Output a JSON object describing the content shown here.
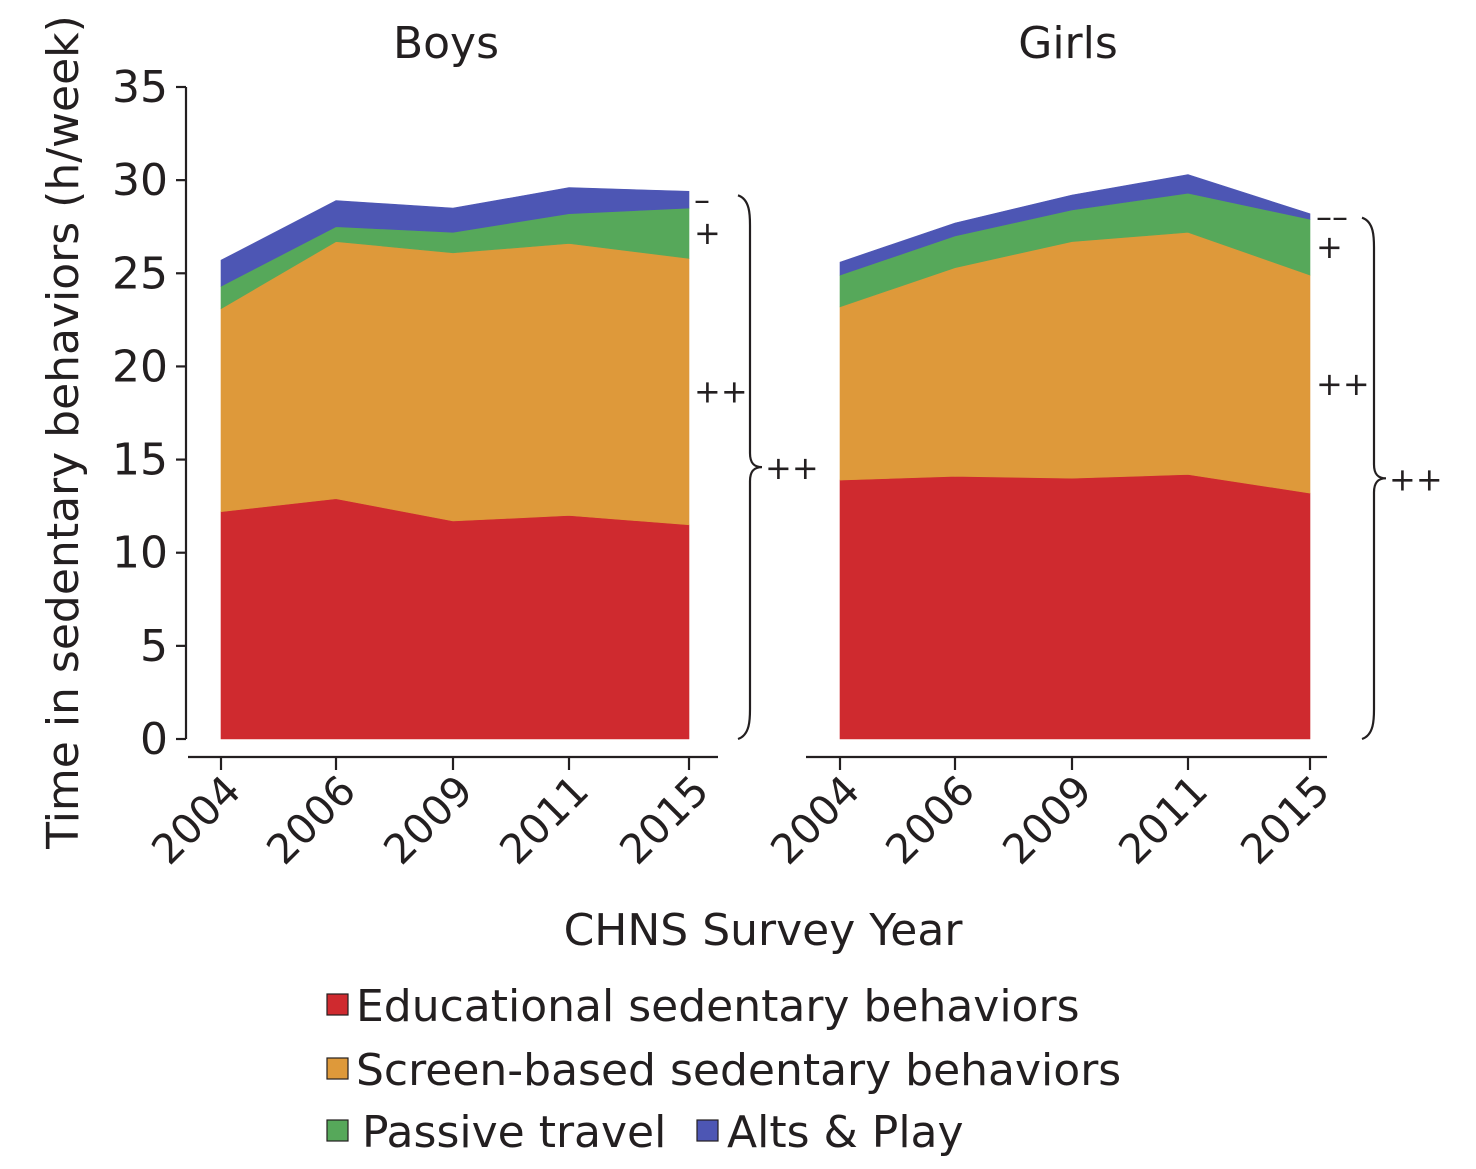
{
  "chart_data": {
    "type": "area",
    "stacked": true,
    "ylabel": "Time in sedentary behaviors (h/week)",
    "xlabel": "CHNS Survey Year",
    "ylim": [
      0,
      35
    ],
    "yticks": [
      "0",
      "5",
      "10",
      "15",
      "20",
      "25",
      "30",
      "35"
    ],
    "categories": [
      "2004",
      "2006",
      "2009",
      "2011",
      "2015"
    ],
    "series_colors": {
      "educational": "#cf2a2f",
      "screen": "#de993a",
      "passive": "#56a85a",
      "alts": "#4d56b4"
    },
    "legend": [
      {
        "key": "educational",
        "label": "Educational sedentary behaviors"
      },
      {
        "key": "screen",
        "label": "Screen-based sedentary behaviors"
      },
      {
        "key": "passive",
        "label": "Passive travel"
      },
      {
        "key": "alts",
        "label": "Alts & Play"
      }
    ],
    "panels": [
      {
        "title": "Boys",
        "series": [
          {
            "key": "educational",
            "name": "Educational sedentary behaviors",
            "values": [
              12.2,
              12.9,
              11.7,
              12.0,
              11.5
            ]
          },
          {
            "key": "screen",
            "name": "Screen-based sedentary behaviors",
            "values": [
              10.9,
              13.8,
              14.4,
              14.6,
              14.3
            ]
          },
          {
            "key": "passive",
            "name": "Passive travel",
            "values": [
              1.2,
              0.8,
              1.1,
              1.6,
              2.7
            ]
          },
          {
            "key": "alts",
            "name": "Alts & Play",
            "values": [
              1.4,
              1.4,
              1.3,
              1.4,
              0.9
            ]
          }
        ],
        "significance": {
          "alts": "–",
          "passive": "+",
          "screen": "++",
          "total": "++"
        }
      },
      {
        "title": "Girls",
        "series": [
          {
            "key": "educational",
            "name": "Educational sedentary behaviors",
            "values": [
              13.9,
              14.1,
              14.0,
              14.2,
              13.2
            ]
          },
          {
            "key": "screen",
            "name": "Screen-based sedentary behaviors",
            "values": [
              9.3,
              11.2,
              12.7,
              13.0,
              11.7
            ]
          },
          {
            "key": "passive",
            "name": "Passive travel",
            "values": [
              1.7,
              1.7,
              1.7,
              2.1,
              3.0
            ]
          },
          {
            "key": "alts",
            "name": "Alts & Play",
            "values": [
              0.7,
              0.7,
              0.8,
              1.0,
              0.3
            ]
          }
        ],
        "significance": {
          "alts": "––",
          "passive": "+",
          "screen": "++",
          "total": "++"
        }
      }
    ]
  }
}
